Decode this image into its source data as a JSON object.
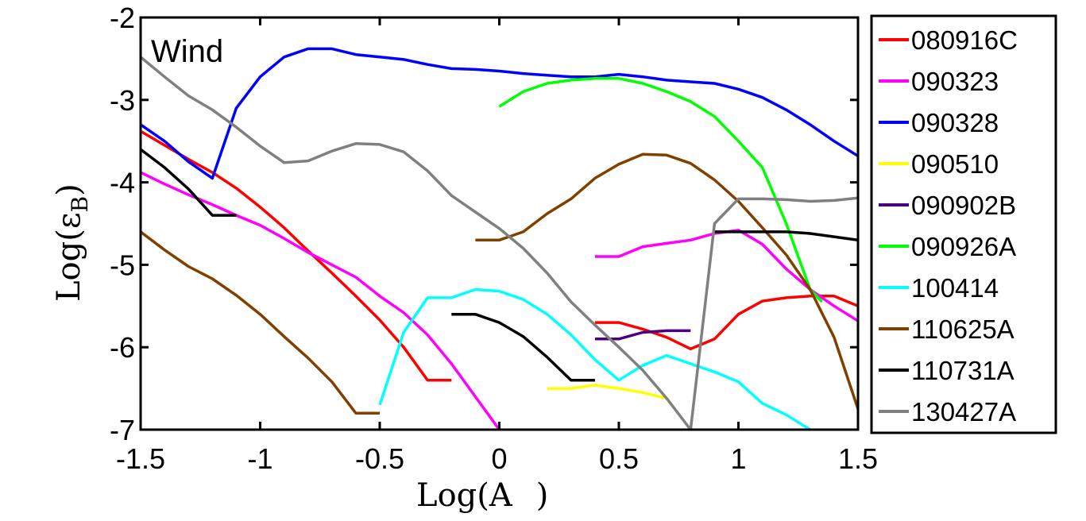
{
  "chart_data": {
    "type": "line",
    "panel_label": "Wind",
    "xlabel": "Log(A∗)",
    "xlabel_display": "Log(A  )",
    "ylabel": "Log(εB)",
    "ylabel_parts": {
      "main": "Log(ε",
      "sub": "B",
      "close": ")"
    },
    "xlabel_parts": {
      "main": "Log(A",
      "close": ")"
    },
    "xlim": [
      -1.5,
      1.5
    ],
    "ylim": [
      -7,
      -2
    ],
    "xticks": [
      -1.5,
      -1,
      -0.5,
      0,
      0.5,
      1,
      1.5
    ],
    "xtick_labels": [
      "-1.5",
      "-1",
      "-0.5",
      "0",
      "0.5",
      "1",
      "1.5"
    ],
    "yticks": [
      -2,
      -3,
      -4,
      -5,
      -6,
      -7
    ],
    "ytick_labels": [
      "-2",
      "-3",
      "-4",
      "-5",
      "-6",
      "-7"
    ],
    "grid": false,
    "legend_position": "right-outside",
    "series": [
      {
        "name": "080916C",
        "color": "#ff0000",
        "segments": [
          [
            [
              -1.5,
              -3.38
            ],
            [
              -1.4,
              -3.55
            ],
            [
              -1.3,
              -3.72
            ],
            [
              -1.2,
              -3.88
            ],
            [
              -1.1,
              -4.07
            ],
            [
              -1.0,
              -4.3
            ],
            [
              -0.9,
              -4.55
            ],
            [
              -0.8,
              -4.83
            ],
            [
              -0.7,
              -5.1
            ],
            [
              -0.6,
              -5.38
            ],
            [
              -0.5,
              -5.67
            ],
            [
              -0.4,
              -6.0
            ],
            [
              -0.3,
              -6.4
            ],
            [
              -0.2,
              -6.4
            ]
          ],
          [
            [
              0.4,
              -5.7
            ],
            [
              0.5,
              -5.7
            ],
            [
              0.6,
              -5.78
            ],
            [
              0.7,
              -5.88
            ],
            [
              0.8,
              -6.02
            ],
            [
              0.9,
              -5.9
            ],
            [
              1.0,
              -5.6
            ],
            [
              1.1,
              -5.44
            ],
            [
              1.2,
              -5.4
            ],
            [
              1.3,
              -5.38
            ],
            [
              1.4,
              -5.38
            ],
            [
              1.5,
              -5.5
            ]
          ]
        ]
      },
      {
        "name": "090323",
        "color": "#ff00ff",
        "segments": [
          [
            [
              -1.5,
              -3.88
            ],
            [
              -1.4,
              -4.02
            ],
            [
              -1.3,
              -4.15
            ],
            [
              -1.2,
              -4.27
            ],
            [
              -1.1,
              -4.4
            ],
            [
              -1.0,
              -4.52
            ],
            [
              -0.9,
              -4.68
            ],
            [
              -0.8,
              -4.85
            ],
            [
              -0.7,
              -5.0
            ],
            [
              -0.6,
              -5.15
            ],
            [
              -0.5,
              -5.38
            ],
            [
              -0.4,
              -5.58
            ],
            [
              -0.3,
              -5.85
            ],
            [
              -0.2,
              -6.2
            ],
            [
              -0.1,
              -6.6
            ],
            [
              0.0,
              -7.0
            ]
          ],
          [
            [
              0.4,
              -4.9
            ],
            [
              0.5,
              -4.9
            ],
            [
              0.6,
              -4.78
            ],
            [
              0.7,
              -4.74
            ],
            [
              0.8,
              -4.7
            ],
            [
              0.9,
              -4.62
            ],
            [
              1.0,
              -4.58
            ],
            [
              1.1,
              -4.75
            ],
            [
              1.2,
              -5.05
            ],
            [
              1.3,
              -5.3
            ],
            [
              1.4,
              -5.5
            ],
            [
              1.5,
              -5.68
            ]
          ]
        ]
      },
      {
        "name": "090328",
        "color": "#0000ff",
        "segments": [
          [
            [
              -1.5,
              -3.3
            ],
            [
              -1.4,
              -3.5
            ],
            [
              -1.3,
              -3.75
            ],
            [
              -1.2,
              -3.95
            ],
            [
              -1.1,
              -3.1
            ],
            [
              -1.0,
              -2.72
            ],
            [
              -0.9,
              -2.48
            ],
            [
              -0.8,
              -2.38
            ],
            [
              -0.7,
              -2.38
            ],
            [
              -0.6,
              -2.45
            ],
            [
              -0.5,
              -2.48
            ],
            [
              -0.4,
              -2.51
            ],
            [
              -0.3,
              -2.57
            ],
            [
              -0.2,
              -2.62
            ],
            [
              -0.1,
              -2.63
            ],
            [
              0.0,
              -2.65
            ],
            [
              0.1,
              -2.68
            ],
            [
              0.2,
              -2.7
            ],
            [
              0.3,
              -2.72
            ],
            [
              0.4,
              -2.72
            ],
            [
              0.5,
              -2.69
            ],
            [
              0.6,
              -2.72
            ],
            [
              0.7,
              -2.76
            ],
            [
              0.8,
              -2.78
            ],
            [
              0.9,
              -2.8
            ],
            [
              1.0,
              -2.87
            ],
            [
              1.1,
              -2.97
            ],
            [
              1.2,
              -3.12
            ],
            [
              1.3,
              -3.3
            ],
            [
              1.4,
              -3.5
            ],
            [
              1.5,
              -3.68
            ]
          ]
        ]
      },
      {
        "name": "090510",
        "color": "#ffff00",
        "segments": [
          [
            [
              0.2,
              -6.5
            ],
            [
              0.3,
              -6.5
            ],
            [
              0.4,
              -6.46
            ],
            [
              0.5,
              -6.5
            ],
            [
              0.6,
              -6.55
            ],
            [
              0.7,
              -6.62
            ]
          ]
        ]
      },
      {
        "name": "090902B",
        "color": "#4b0082",
        "segments": [
          [
            [
              0.4,
              -5.9
            ],
            [
              0.5,
              -5.9
            ],
            [
              0.6,
              -5.82
            ],
            [
              0.7,
              -5.8
            ],
            [
              0.8,
              -5.8
            ]
          ]
        ]
      },
      {
        "name": "090926A",
        "color": "#00ff00",
        "segments": [
          [
            [
              0.0,
              -3.08
            ],
            [
              0.1,
              -2.9
            ],
            [
              0.2,
              -2.8
            ],
            [
              0.3,
              -2.76
            ],
            [
              0.4,
              -2.74
            ],
            [
              0.5,
              -2.74
            ],
            [
              0.6,
              -2.8
            ],
            [
              0.7,
              -2.9
            ],
            [
              0.8,
              -3.02
            ],
            [
              0.9,
              -3.2
            ],
            [
              1.0,
              -3.5
            ],
            [
              1.1,
              -3.82
            ],
            [
              1.2,
              -4.5
            ],
            [
              1.3,
              -5.3
            ],
            [
              1.35,
              -5.45
            ]
          ]
        ]
      },
      {
        "name": "100414",
        "color": "#00ffff",
        "segments": [
          [
            [
              -0.5,
              -6.7
            ],
            [
              -0.4,
              -5.82
            ],
            [
              -0.3,
              -5.4
            ],
            [
              -0.2,
              -5.4
            ],
            [
              -0.1,
              -5.3
            ],
            [
              0.0,
              -5.32
            ],
            [
              0.1,
              -5.42
            ],
            [
              0.2,
              -5.6
            ],
            [
              0.3,
              -5.85
            ],
            [
              0.4,
              -6.15
            ],
            [
              0.5,
              -6.4
            ],
            [
              0.6,
              -6.22
            ],
            [
              0.7,
              -6.1
            ],
            [
              0.8,
              -6.2
            ],
            [
              0.9,
              -6.3
            ],
            [
              1.0,
              -6.42
            ],
            [
              1.1,
              -6.68
            ],
            [
              1.2,
              -6.82
            ],
            [
              1.3,
              -7.0
            ]
          ]
        ]
      },
      {
        "name": "110625A",
        "color": "#804000",
        "segments": [
          [
            [
              -1.5,
              -4.6
            ],
            [
              -1.4,
              -4.82
            ],
            [
              -1.3,
              -5.02
            ],
            [
              -1.2,
              -5.17
            ],
            [
              -1.1,
              -5.37
            ],
            [
              -1.0,
              -5.6
            ],
            [
              -0.9,
              -5.87
            ],
            [
              -0.8,
              -6.13
            ],
            [
              -0.7,
              -6.42
            ],
            [
              -0.6,
              -6.8
            ],
            [
              -0.5,
              -6.8
            ]
          ],
          [
            [
              -0.1,
              -4.7
            ],
            [
              0.0,
              -4.7
            ],
            [
              0.1,
              -4.6
            ],
            [
              0.2,
              -4.38
            ],
            [
              0.3,
              -4.2
            ],
            [
              0.4,
              -3.95
            ],
            [
              0.5,
              -3.78
            ],
            [
              0.6,
              -3.66
            ],
            [
              0.7,
              -3.67
            ],
            [
              0.8,
              -3.77
            ],
            [
              0.9,
              -3.97
            ],
            [
              1.0,
              -4.23
            ],
            [
              1.1,
              -4.55
            ],
            [
              1.2,
              -4.88
            ],
            [
              1.3,
              -5.3
            ],
            [
              1.4,
              -5.88
            ],
            [
              1.5,
              -6.75
            ]
          ]
        ]
      },
      {
        "name": "110731A",
        "color": "#000000",
        "segments": [
          [
            [
              -1.5,
              -3.6
            ],
            [
              -1.4,
              -3.82
            ],
            [
              -1.3,
              -4.08
            ],
            [
              -1.2,
              -4.4
            ],
            [
              -1.1,
              -4.4
            ]
          ],
          [
            [
              -0.2,
              -5.6
            ],
            [
              -0.1,
              -5.6
            ],
            [
              0.0,
              -5.7
            ],
            [
              0.1,
              -5.87
            ],
            [
              0.2,
              -6.12
            ],
            [
              0.3,
              -6.4
            ],
            [
              0.4,
              -6.4
            ]
          ],
          [
            [
              0.9,
              -4.6
            ],
            [
              1.0,
              -4.6
            ],
            [
              1.1,
              -4.6
            ],
            [
              1.2,
              -4.6
            ],
            [
              1.3,
              -4.62
            ],
            [
              1.4,
              -4.66
            ],
            [
              1.5,
              -4.7
            ]
          ]
        ]
      },
      {
        "name": "130427A",
        "color": "#808080",
        "segments": [
          [
            [
              -1.5,
              -2.48
            ],
            [
              -1.4,
              -2.72
            ],
            [
              -1.3,
              -2.95
            ],
            [
              -1.2,
              -3.12
            ],
            [
              -1.1,
              -3.33
            ],
            [
              -1.0,
              -3.56
            ],
            [
              -0.9,
              -3.76
            ],
            [
              -0.8,
              -3.74
            ],
            [
              -0.7,
              -3.62
            ],
            [
              -0.6,
              -3.53
            ],
            [
              -0.5,
              -3.54
            ],
            [
              -0.4,
              -3.63
            ],
            [
              -0.3,
              -3.86
            ],
            [
              -0.2,
              -4.16
            ],
            [
              -0.1,
              -4.36
            ],
            [
              0.0,
              -4.56
            ],
            [
              0.1,
              -4.8
            ],
            [
              0.2,
              -5.1
            ],
            [
              0.3,
              -5.45
            ],
            [
              0.4,
              -5.73
            ],
            [
              0.5,
              -6.0
            ],
            [
              0.6,
              -6.28
            ],
            [
              0.7,
              -6.62
            ],
            [
              0.8,
              -7.0
            ],
            [
              0.9,
              -4.5
            ],
            [
              1.0,
              -4.2
            ],
            [
              1.1,
              -4.2
            ],
            [
              1.2,
              -4.21
            ],
            [
              1.3,
              -4.23
            ],
            [
              1.4,
              -4.22
            ],
            [
              1.5,
              -4.19
            ]
          ]
        ]
      }
    ]
  }
}
